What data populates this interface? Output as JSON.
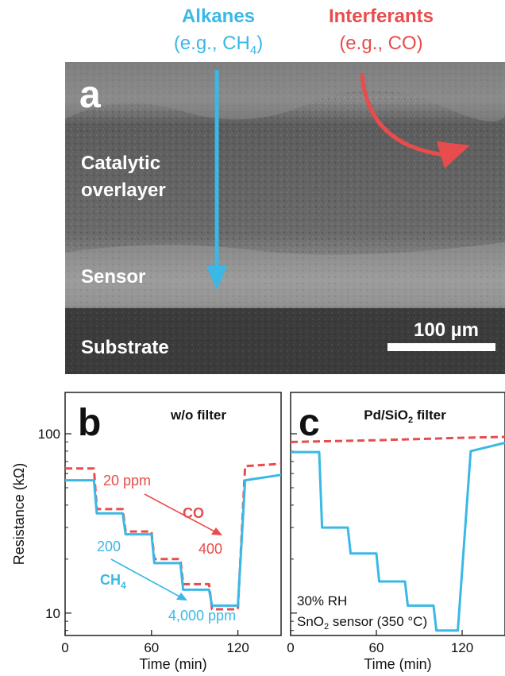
{
  "colors": {
    "alkane": "#3ab8e6",
    "interferant": "#e84c4c",
    "text": "#111111",
    "scale_bar": "#ffffff"
  },
  "panel_a": {
    "letter": "a",
    "alkane_title": "Alkanes",
    "alkane_example": "(e.g., CH",
    "alkane_example_sub": "4",
    "alkane_example_end": ")",
    "interferant_title": "Interferants",
    "interferant_example": "(e.g., CO)",
    "layer_catalytic_1": "Catalytic",
    "layer_catalytic_2": "overlayer",
    "layer_sensor": "Sensor",
    "layer_substrate": "Substrate",
    "scale_bar": "100 µm"
  },
  "panel_b": {
    "letter": "b",
    "title": "w/o filter",
    "co_start": "20 ppm",
    "co_label": "CO",
    "co_end": "400",
    "ch4_start": "200",
    "ch4_label": "CH",
    "ch4_label_sub": "4",
    "ch4_end": "4,000 ppm"
  },
  "panel_c": {
    "letter": "c",
    "title_pre": "Pd/SiO",
    "title_sub": "2",
    "title_post": " filter",
    "note_rh": "30% RH",
    "note_sensor_pre": "SnO",
    "note_sensor_sub": "2",
    "note_sensor_post": " sensor (350 °C)"
  },
  "axes": {
    "y_label": "Resistance (kΩ)",
    "y_ticks": [
      "10",
      "100"
    ],
    "x_label_b": "Time (min)",
    "x_label_c": "Time (min)",
    "x_ticks": [
      "0",
      "60",
      "120"
    ]
  },
  "chart_data": [
    {
      "type": "line",
      "panel": "b",
      "title": "w/o filter",
      "xlabel": "Time (min)",
      "ylabel": "Resistance (kΩ)",
      "xlim": [
        0,
        150
      ],
      "ylim": [
        7.5,
        170
      ],
      "yscale": "log",
      "x_ticks": [
        0,
        60,
        120
      ],
      "y_ticks": [
        10,
        100
      ],
      "series": [
        {
          "name": "CO",
          "style": "dashed",
          "color": "#e84c4c",
          "points": [
            [
              0,
              64
            ],
            [
              20,
              64
            ],
            [
              22,
              38
            ],
            [
              40,
              38
            ],
            [
              42,
              28.5
            ],
            [
              60,
              28.5
            ],
            [
              62,
              20
            ],
            [
              80,
              20
            ],
            [
              82,
              14.5
            ],
            [
              100,
              14.5
            ],
            [
              102,
              10.5
            ],
            [
              120,
              10.5
            ],
            [
              125,
              66
            ],
            [
              150,
              68
            ]
          ]
        },
        {
          "name": "CH4",
          "style": "solid",
          "color": "#3ab8e6",
          "points": [
            [
              0,
              55
            ],
            [
              20,
              55
            ],
            [
              22,
              36
            ],
            [
              40,
              36
            ],
            [
              42,
              27.5
            ],
            [
              60,
              27.5
            ],
            [
              62,
              19
            ],
            [
              80,
              19
            ],
            [
              82,
              13.5
            ],
            [
              100,
              13.5
            ],
            [
              102,
              11
            ],
            [
              120,
              11
            ],
            [
              125,
              55
            ],
            [
              150,
              59
            ]
          ]
        }
      ]
    },
    {
      "type": "line",
      "panel": "c",
      "title": "Pd/SiO2 filter",
      "xlabel": "Time (min)",
      "ylabel": "Resistance (kΩ)",
      "xlim": [
        0,
        150
      ],
      "ylim": [
        7.5,
        170
      ],
      "yscale": "log",
      "x_ticks": [
        0,
        60,
        120
      ],
      "series": [
        {
          "name": "CO",
          "style": "dashed",
          "color": "#e84c4c",
          "points": [
            [
              0,
              90
            ],
            [
              60,
              92
            ],
            [
              120,
              95
            ],
            [
              150,
              96
            ]
          ]
        },
        {
          "name": "CH4",
          "style": "solid",
          "color": "#3ab8e6",
          "points": [
            [
              0,
              79
            ],
            [
              20,
              79
            ],
            [
              22,
              30
            ],
            [
              40,
              30
            ],
            [
              42,
              21.5
            ],
            [
              60,
              21.5
            ],
            [
              62,
              15
            ],
            [
              80,
              15
            ],
            [
              82,
              11
            ],
            [
              100,
              11
            ],
            [
              102,
              8
            ],
            [
              117,
              8
            ],
            [
              126,
              80
            ],
            [
              150,
              89
            ]
          ]
        }
      ]
    }
  ]
}
